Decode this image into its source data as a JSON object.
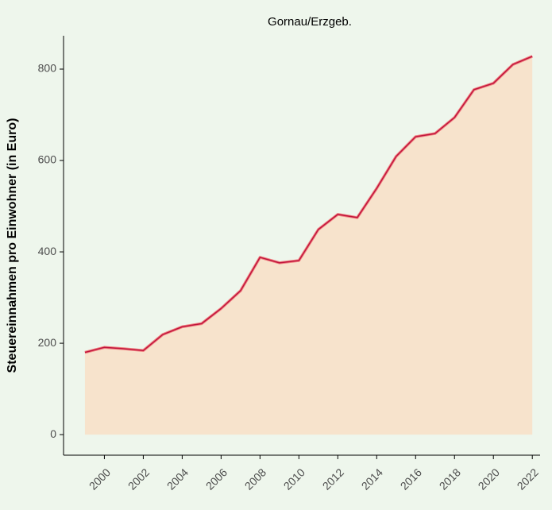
{
  "chart_data": {
    "type": "area",
    "title": "Gornau/Erzgeb.",
    "y_label": "Steuereinnahmen pro Einwohner (in Euro)",
    "x": [
      1999,
      2000,
      2001,
      2002,
      2003,
      2004,
      2005,
      2006,
      2007,
      2008,
      2009,
      2010,
      2011,
      2012,
      2013,
      2014,
      2015,
      2016,
      2017,
      2018,
      2019,
      2020,
      2021,
      2022
    ],
    "values": [
      180,
      191,
      188,
      184,
      219,
      236,
      243,
      276,
      315,
      388,
      376,
      381,
      449,
      482,
      475,
      539,
      609,
      652,
      659,
      694,
      755,
      769,
      810,
      828
    ],
    "color": "#c0143c",
    "fill": "#f7e3cc",
    "xlim": [
      1997.9,
      2022.4
    ],
    "xticks": [
      2000,
      2002,
      2004,
      2006,
      2008,
      2010,
      2012,
      2014,
      2016,
      2018,
      2020,
      2022
    ],
    "ylim": [
      -45,
      873
    ],
    "yticks": [
      0,
      200,
      400,
      600,
      800
    ]
  }
}
